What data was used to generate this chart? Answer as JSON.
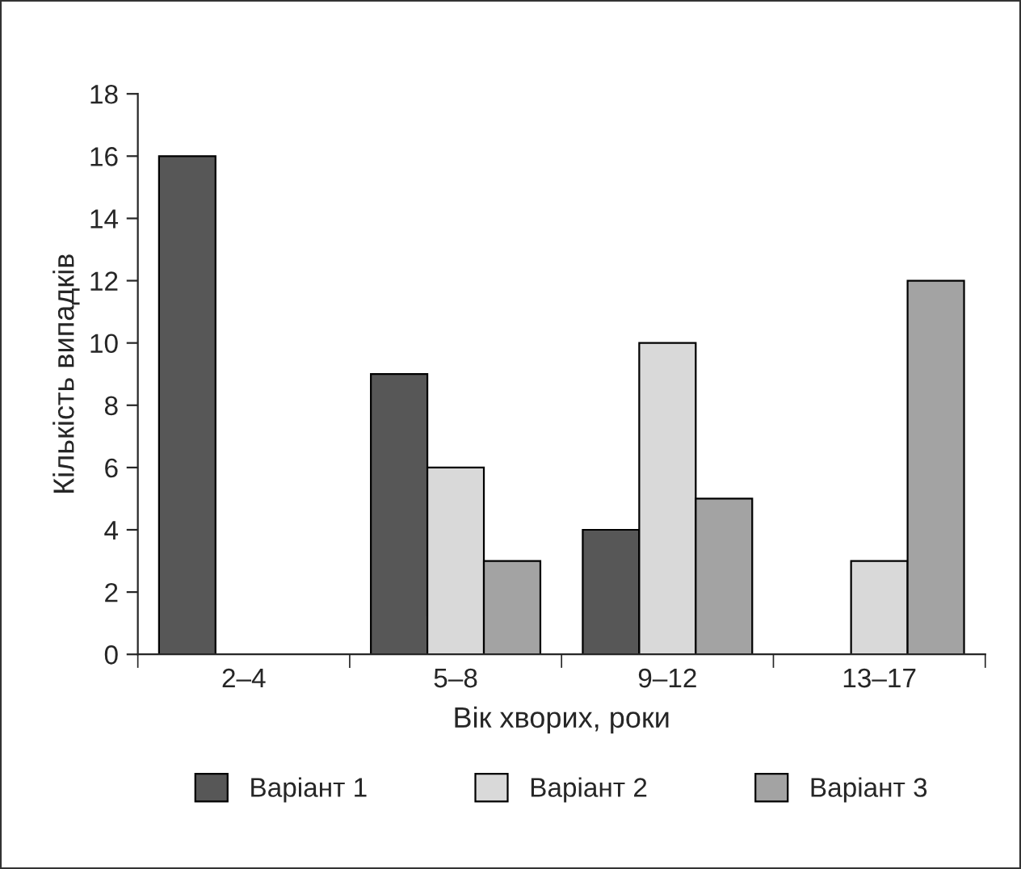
{
  "chart_data": {
    "type": "bar",
    "xlabel": "Вік хворих, роки",
    "ylabel": "Кількість випадків",
    "categories": [
      "2–4",
      "5–8",
      "9–12",
      "13–17"
    ],
    "series": [
      {
        "name": "Варіант 1",
        "color": "#575757",
        "values": [
          16,
          9,
          4,
          0
        ]
      },
      {
        "name": "Варіант 2",
        "color": "#d9d9d9",
        "values": [
          0,
          6,
          10,
          3
        ]
      },
      {
        "name": "Варіант 3",
        "color": "#a3a3a3",
        "values": [
          0,
          3,
          5,
          12
        ]
      }
    ],
    "ylim": [
      0,
      18
    ],
    "yticks": [
      0,
      2,
      4,
      6,
      8,
      10,
      12,
      14,
      16,
      18
    ],
    "grid": false,
    "legend": "bottom"
  }
}
